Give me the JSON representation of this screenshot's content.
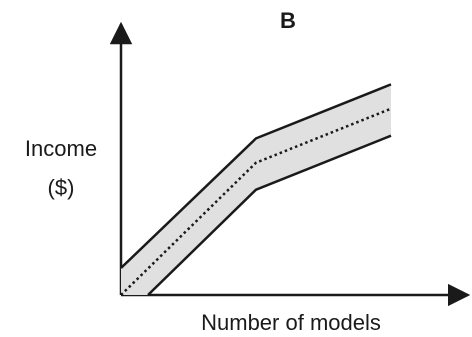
{
  "chart_data": {
    "type": "area",
    "title": "B",
    "xlabel": "Number of models",
    "ylabel": "Income",
    "ylabel_unit": "($)",
    "xlim": [
      0,
      10
    ],
    "ylim": [
      0,
      10
    ],
    "x": [
      0,
      4,
      8
    ],
    "series": [
      {
        "role": "upper",
        "style": "solid",
        "values": [
          1.0,
          5.8,
          7.8
        ]
      },
      {
        "role": "mean",
        "style": "dotted",
        "values": [
          0.0,
          4.9,
          6.9
        ]
      },
      {
        "role": "lower",
        "style": "solid",
        "lower_start_x": 0.8,
        "values": [
          0.0,
          3.9,
          5.9
        ]
      }
    ],
    "band_fill": "#e0e0e0",
    "line_color": "#1a1a1a",
    "ticks": false,
    "grid": false
  }
}
